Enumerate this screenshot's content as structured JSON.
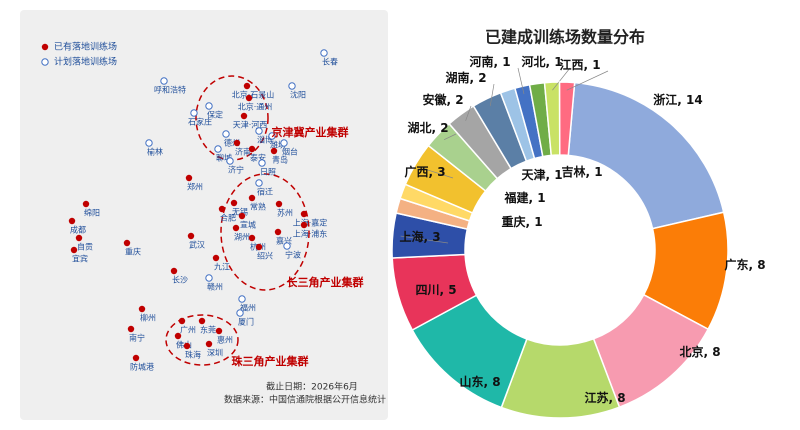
{
  "map": {
    "legend": [
      {
        "label": "已有落地训练场",
        "built": true
      },
      {
        "label": "计划落地训练场",
        "built": false
      }
    ],
    "cities": [
      {
        "name": "长春",
        "built": false
      },
      {
        "name": "沈阳",
        "built": false
      },
      {
        "name": "呼和浩特",
        "built": false
      },
      {
        "name": "北京·石景山",
        "built": true
      },
      {
        "name": "北京·通州",
        "built": true
      },
      {
        "name": "保定",
        "built": false
      },
      {
        "name": "石家庄",
        "built": false
      },
      {
        "name": "天津·河西",
        "built": true
      },
      {
        "name": "淄博",
        "built": false
      },
      {
        "name": "德州",
        "built": false
      },
      {
        "name": "潍坊",
        "built": false
      },
      {
        "name": "济南",
        "built": true
      },
      {
        "name": "烟台",
        "built": false
      },
      {
        "name": "聊城",
        "built": false
      },
      {
        "name": "泰安",
        "built": true
      },
      {
        "name": "青岛",
        "built": true
      },
      {
        "name": "榆林",
        "built": false
      },
      {
        "name": "济宁",
        "built": false
      },
      {
        "name": "日照",
        "built": false
      },
      {
        "name": "郑州",
        "built": true
      },
      {
        "name": "宿迁",
        "built": false
      },
      {
        "name": "无锡",
        "built": true
      },
      {
        "name": "常熟",
        "built": true
      },
      {
        "name": "苏州",
        "built": true
      },
      {
        "name": "合肥",
        "built": true
      },
      {
        "name": "上海·嘉定",
        "built": true
      },
      {
        "name": "宣城",
        "built": true
      },
      {
        "name": "上海·浦东",
        "built": true
      },
      {
        "name": "湖州",
        "built": true
      },
      {
        "name": "杭州",
        "built": true
      },
      {
        "name": "嘉兴",
        "built": true
      },
      {
        "name": "绍兴",
        "built": true
      },
      {
        "name": "宁波",
        "built": false
      },
      {
        "name": "绵阳",
        "built": true
      },
      {
        "name": "成都",
        "built": true
      },
      {
        "name": "自贡",
        "built": true
      },
      {
        "name": "宜宾",
        "built": true
      },
      {
        "name": "重庆",
        "built": true
      },
      {
        "name": "武汉",
        "built": true
      },
      {
        "name": "九江",
        "built": true
      },
      {
        "name": "长沙",
        "built": true
      },
      {
        "name": "赣州",
        "built": false
      },
      {
        "name": "福州",
        "built": false
      },
      {
        "name": "厦门",
        "built": false
      },
      {
        "name": "柳州",
        "built": true
      },
      {
        "name": "南宁",
        "built": true
      },
      {
        "name": "广州",
        "built": true
      },
      {
        "name": "东莞",
        "built": true
      },
      {
        "name": "惠州",
        "built": true
      },
      {
        "name": "佛山",
        "built": true
      },
      {
        "name": "珠海",
        "built": true
      },
      {
        "name": "深圳",
        "built": true
      },
      {
        "name": "防城港",
        "built": true
      }
    ],
    "clusters": [
      "京津冀产业集群",
      "长三角产业集群",
      "珠三角产业集群"
    ],
    "footnotes": [
      "截止日期：2026年6月",
      "数据来源：中国信通院根据公开信息统计"
    ]
  },
  "chart_data": {
    "type": "donut",
    "title": "已建成训练场数量分布",
    "categories": [
      "浙江",
      "广东",
      "北京",
      "江苏",
      "山东",
      "四川",
      "上海",
      "重庆",
      "福建",
      "广西",
      "湖北",
      "安徽",
      "湖南",
      "天津",
      "河南",
      "吉林",
      "河北",
      "江西"
    ],
    "values": [
      14,
      8,
      8,
      8,
      8,
      5,
      3,
      1,
      1,
      3,
      2,
      2,
      2,
      1,
      1,
      1,
      1,
      1
    ],
    "value_labels": [
      ", 14",
      ", 8",
      ", 8",
      ", 8",
      ", 8",
      ", 5",
      ", 3",
      ", 1",
      ", 1",
      ", 3",
      ", 2",
      ", 2",
      ", 2",
      ", 1",
      ", 1",
      ", 1",
      ", 1",
      ", 1"
    ],
    "colors": [
      "#8faadc",
      "#fb7d07",
      "#f79bb0",
      "#b6d96b",
      "#1fb8a8",
      "#e8345a",
      "#2e4fa8",
      "#f4b183",
      "#ffd966",
      "#f2c12e",
      "#a9d18e",
      "#a5a5a5",
      "#5b7fa6",
      "#9dc3e6",
      "#4472c4",
      "#70ad47",
      "#c9e265",
      "#ff6b81"
    ]
  }
}
